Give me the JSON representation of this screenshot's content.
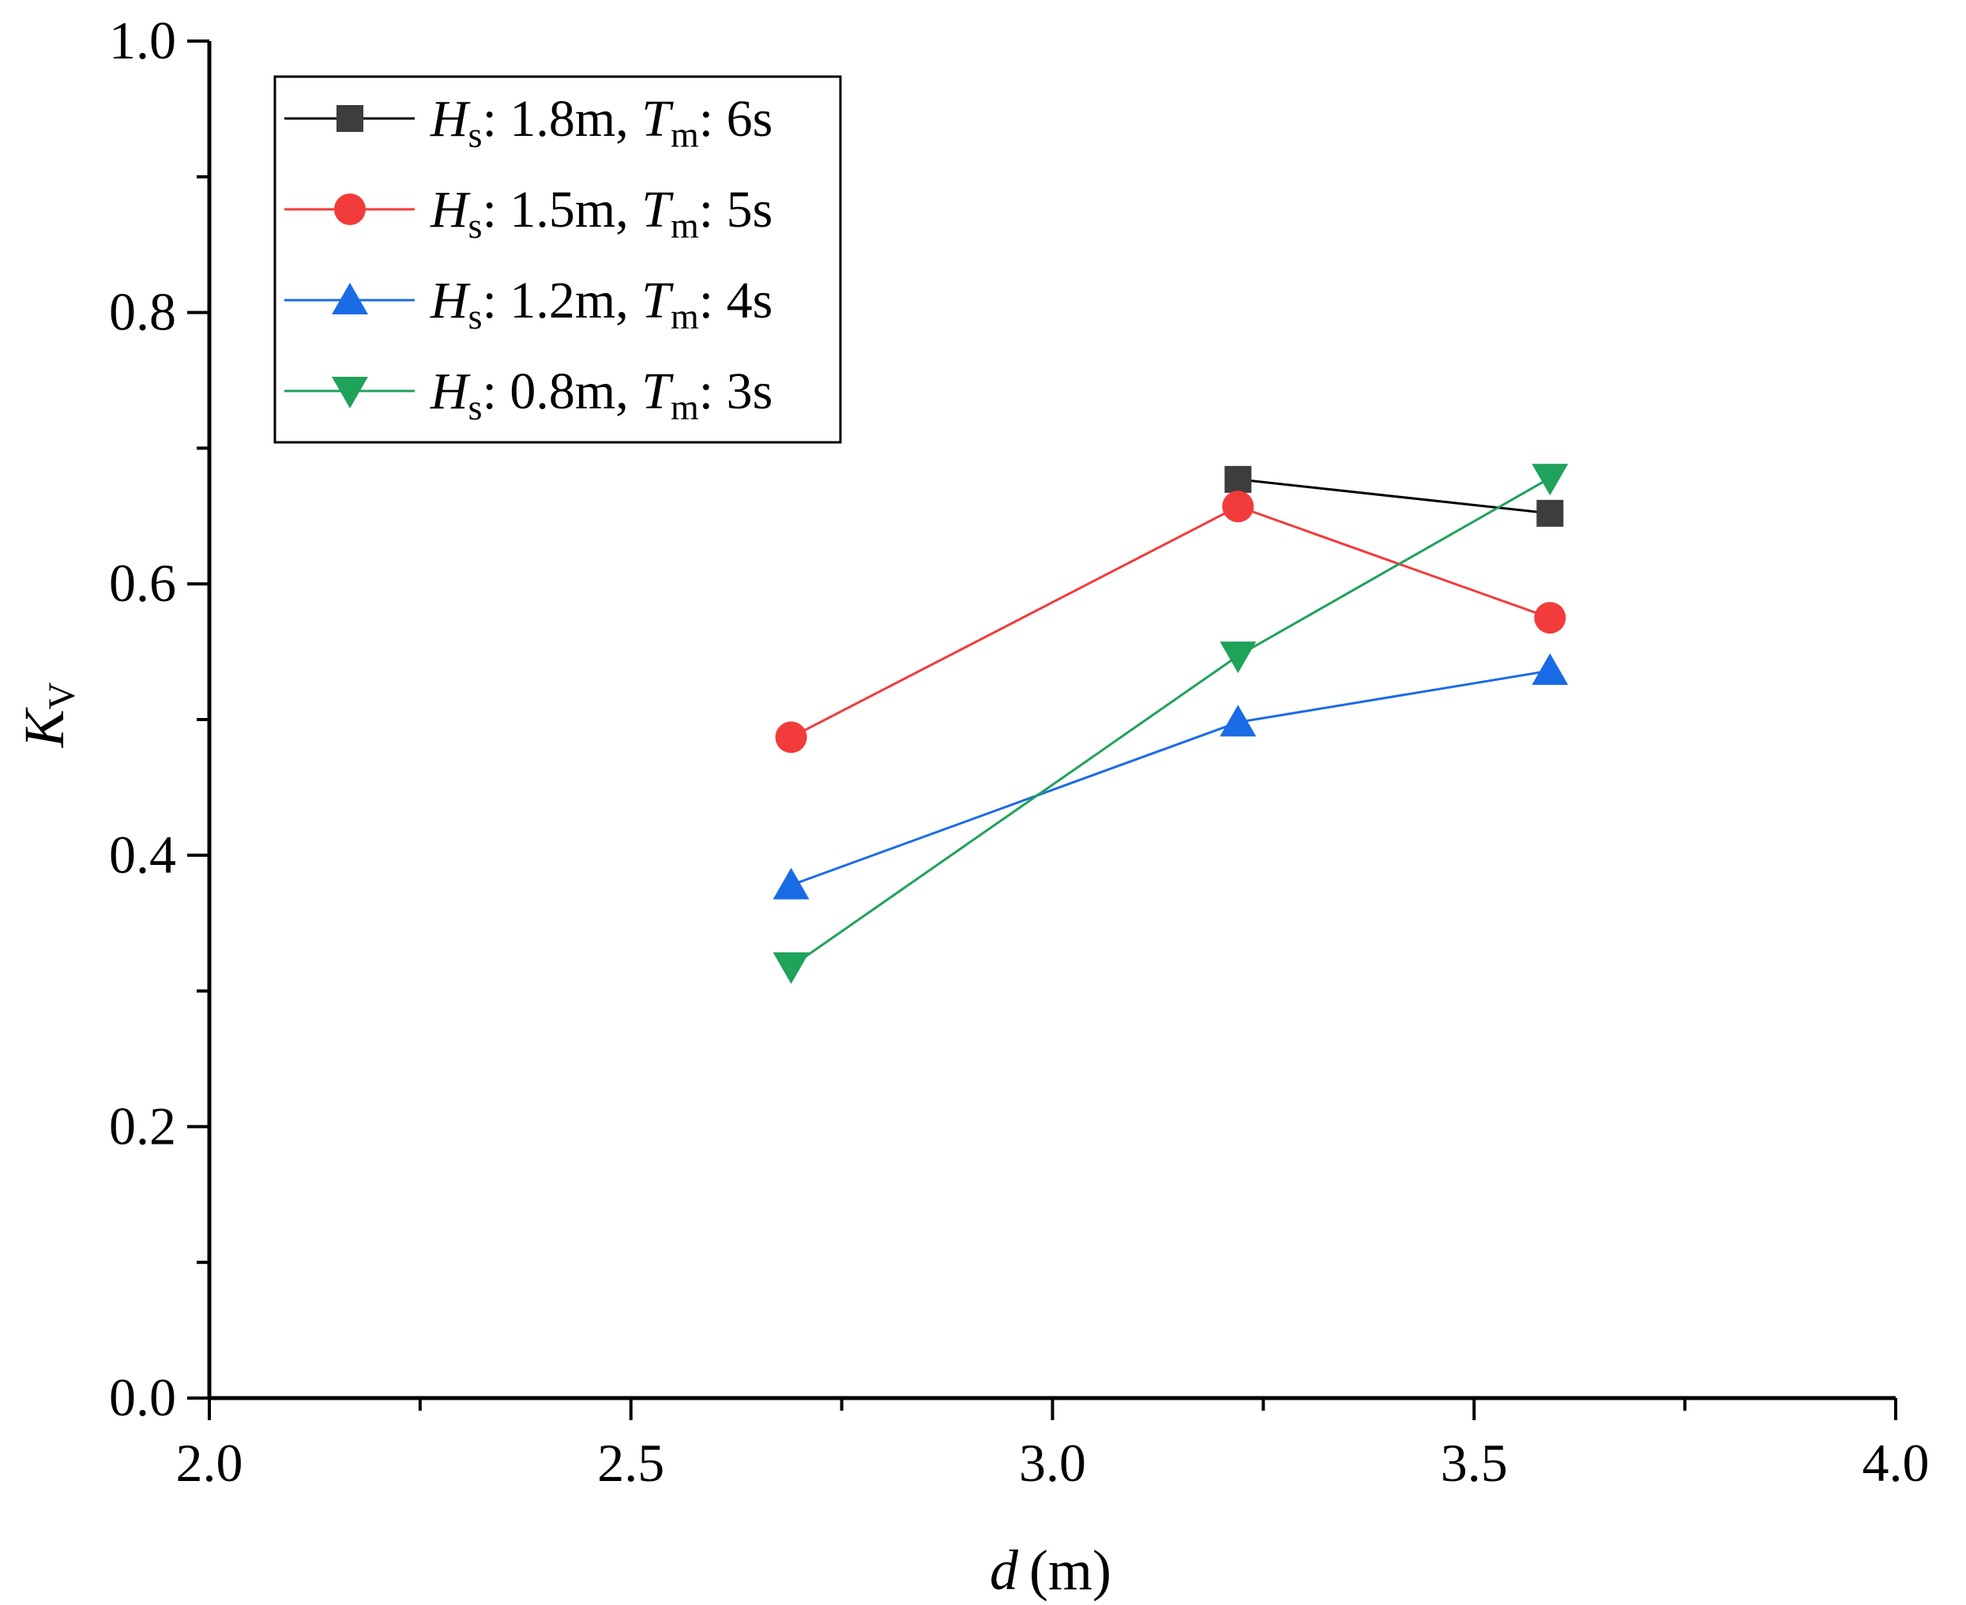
{
  "chart_data": {
    "type": "line",
    "title": "",
    "xlabel": {
      "var": "d",
      "unit": "(m)"
    },
    "ylabel": {
      "var": "K",
      "sub": "V"
    },
    "xlim": [
      2.0,
      4.0
    ],
    "ylim": [
      0.0,
      1.0
    ],
    "x_ticks": [
      "2.0",
      "2.5",
      "3.0",
      "3.5",
      "4.0"
    ],
    "y_ticks": [
      "0.0",
      "0.2",
      "0.4",
      "0.6",
      "0.8",
      "1.0"
    ],
    "x_minor_step": 0.25,
    "y_minor_step": 0.1,
    "grid": false,
    "legend_position": "top-left",
    "series": [
      {
        "key": "hs-1-8",
        "legend": {
          "a": "H",
          "a_sub": "s",
          "mid": ": 1.8m, ",
          "b": "T",
          "b_sub": "m",
          "end": ": 6s"
        },
        "color": "#3d3d3d",
        "line_color": "#000000",
        "marker": "square",
        "x": [
          3.22,
          3.59
        ],
        "values": [
          0.677,
          0.652
        ]
      },
      {
        "key": "hs-1-5",
        "legend": {
          "a": "H",
          "a_sub": "s",
          "mid": ": 1.5m, ",
          "b": "T",
          "b_sub": "m",
          "end": ": 5s"
        },
        "color": "#f23b3b",
        "line_color": "#f23b3b",
        "marker": "circle",
        "x": [
          2.69,
          3.22,
          3.59
        ],
        "values": [
          0.487,
          0.657,
          0.575
        ]
      },
      {
        "key": "hs-1-2",
        "legend": {
          "a": "H",
          "a_sub": "s",
          "mid": ": 1.2m, ",
          "b": "T",
          "b_sub": "m",
          "end": ": 4s"
        },
        "color": "#1a6be6",
        "line_color": "#1a6be6",
        "marker": "triangle-up",
        "x": [
          2.69,
          3.22,
          3.59
        ],
        "values": [
          0.378,
          0.498,
          0.536
        ]
      },
      {
        "key": "hs-0-8",
        "legend": {
          "a": "H",
          "a_sub": "s",
          "mid": ": 0.8m, ",
          "b": "T",
          "b_sub": "m",
          "end": ": 3s"
        },
        "color": "#1fa25a",
        "line_color": "#1fa25a",
        "marker": "triangle-down",
        "x": [
          2.69,
          3.22,
          3.59
        ],
        "values": [
          0.318,
          0.547,
          0.678
        ]
      }
    ]
  }
}
